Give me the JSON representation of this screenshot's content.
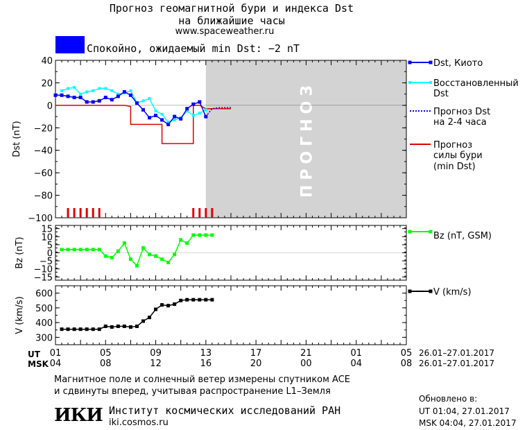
{
  "header": {
    "title_line1": "Прогноз геомагнитной бури и индекса Dst",
    "title_line2": "на ближайшие часы",
    "url": "www.spaceweather.ru",
    "status": "Спокойно, ожидаемый min Dst: −2 nT",
    "status_color": "#0000ff"
  },
  "forecast_label": "ПРОГНОЗ",
  "time_axis": {
    "ut_label": "UT",
    "msk_label": "MSK",
    "ut_ticks": [
      "01",
      "05",
      "09",
      "13",
      "17",
      "21",
      "01",
      "05"
    ],
    "msk_ticks": [
      "04",
      "08",
      "12",
      "16",
      "20",
      "00",
      "04",
      "08"
    ],
    "ut_range": "26.01–27.01.2017",
    "msk_range": "26.01–27.01.2017"
  },
  "chart_data": [
    {
      "type": "line",
      "ylabel": "Dst (nT)",
      "ylim": [
        -100,
        40
      ],
      "yticks": [
        "40",
        "20",
        "0",
        "−20",
        "−40",
        "−60",
        "−80",
        "−100"
      ],
      "x_hours_range": [
        0,
        56
      ],
      "series": [
        {
          "name": "Dst, Киото",
          "color": "#0000ff",
          "x": [
            0,
            1,
            2,
            3,
            4,
            5,
            6,
            7,
            8,
            9,
            10,
            11,
            12,
            13,
            14,
            15,
            16,
            17,
            18,
            19,
            20,
            21,
            22,
            23,
            24
          ],
          "values": [
            9,
            9,
            8,
            7,
            7,
            3,
            3,
            4,
            7,
            5,
            8,
            12,
            9,
            2,
            -4,
            -11,
            -9,
            -13,
            -17,
            -10,
            -12,
            -3,
            1,
            3,
            -10
          ]
        },
        {
          "name": "Восстановленный Dst",
          "color": "#00ffff",
          "x": [
            1,
            2,
            3,
            4,
            5,
            6,
            7,
            8,
            9,
            10,
            11,
            12,
            13,
            14,
            15,
            16,
            17,
            18,
            19,
            20,
            21,
            22,
            23,
            24
          ],
          "values": [
            13,
            15,
            16,
            10,
            12,
            13,
            15,
            15,
            13,
            10,
            11,
            13,
            2,
            4,
            6,
            -5,
            -8,
            -15,
            -13,
            -11,
            -5,
            -9,
            -7,
            -4
          ]
        },
        {
          "name": "Прогноз Dst на 2-4 часа",
          "color": "#0000ff",
          "x": [
            24,
            25,
            26,
            27,
            28
          ],
          "values": [
            -10,
            -3,
            -2,
            -2,
            -2
          ]
        },
        {
          "name": "Прогноз силы бури (min Dst)",
          "color": "#dd0000",
          "x": [
            0,
            11,
            12,
            12.001,
            16,
            17,
            17.001,
            21,
            22,
            22.001,
            23,
            24,
            24.001,
            28
          ],
          "values": [
            0,
            0,
            -1,
            -17,
            -17,
            -17,
            -34,
            -34,
            -34,
            0,
            0,
            -3,
            -3,
            -3
          ]
        }
      ],
      "kp_ticks_x": [
        2,
        3,
        4,
        5,
        6,
        7,
        22,
        23,
        24,
        25
      ]
    },
    {
      "type": "line",
      "ylabel": "Bz (nT)",
      "ylim": [
        -17,
        17
      ],
      "yticks": [
        "15",
        "10",
        "5",
        "0",
        "−5",
        "−10",
        "−15"
      ],
      "series": [
        {
          "name": "Bz (nT, GSM)",
          "color": "#00ff00",
          "x": [
            1,
            2,
            3,
            4,
            5,
            6,
            7,
            8,
            9,
            10,
            11,
            12,
            13,
            14,
            15,
            16,
            17,
            18,
            19,
            20,
            21,
            22,
            23,
            24,
            25
          ],
          "values": [
            2,
            2,
            2,
            2,
            2,
            2,
            2,
            -2,
            -3,
            1,
            6,
            -4,
            -8,
            3,
            -1,
            -2,
            -4,
            -6,
            -1,
            8,
            6,
            11,
            11,
            11,
            11
          ]
        }
      ]
    },
    {
      "type": "line",
      "ylabel": "V (km/s)",
      "ylim": [
        250,
        650
      ],
      "yticks": [
        "600",
        "500",
        "400",
        "300"
      ],
      "series": [
        {
          "name": "V (km/s)",
          "color": "#000000",
          "x": [
            1,
            2,
            3,
            4,
            5,
            6,
            7,
            8,
            9,
            10,
            11,
            12,
            13,
            14,
            15,
            16,
            17,
            18,
            19,
            20,
            21,
            22,
            23,
            24,
            25
          ],
          "values": [
            355,
            355,
            355,
            355,
            355,
            355,
            355,
            375,
            370,
            375,
            375,
            370,
            375,
            410,
            435,
            490,
            520,
            515,
            525,
            550,
            555,
            555,
            555,
            555,
            555
          ]
        }
      ]
    }
  ],
  "legend": {
    "dst_kyoto": "Dst, Киото",
    "restored_line1": "Восстановленный",
    "restored_line2": "Dst",
    "forecast_line1": "Прогноз Dst",
    "forecast_line2": "на 2-4 часа",
    "storm_line1": "Прогноз",
    "storm_line2": "силы бури",
    "storm_line3": "(min Dst)",
    "bz": "Bz (nT, GSM)",
    "v": "V (km/s)"
  },
  "footer": {
    "note_line1": "Магнитное поле и солнечный ветер измерены спутником ACE",
    "note_line2": "и сдвинуты вперед, учитывая распространение L1–Земля",
    "logo": "ИКИ",
    "institute": "Институт космических исследований РАН",
    "institute_url": "iki.cosmos.ru",
    "updated_label": "Обновлено в:",
    "updated_ut": "UT   01:04, 27.01.2017",
    "updated_msk": "MSK 04:04, 27.01.2017"
  }
}
